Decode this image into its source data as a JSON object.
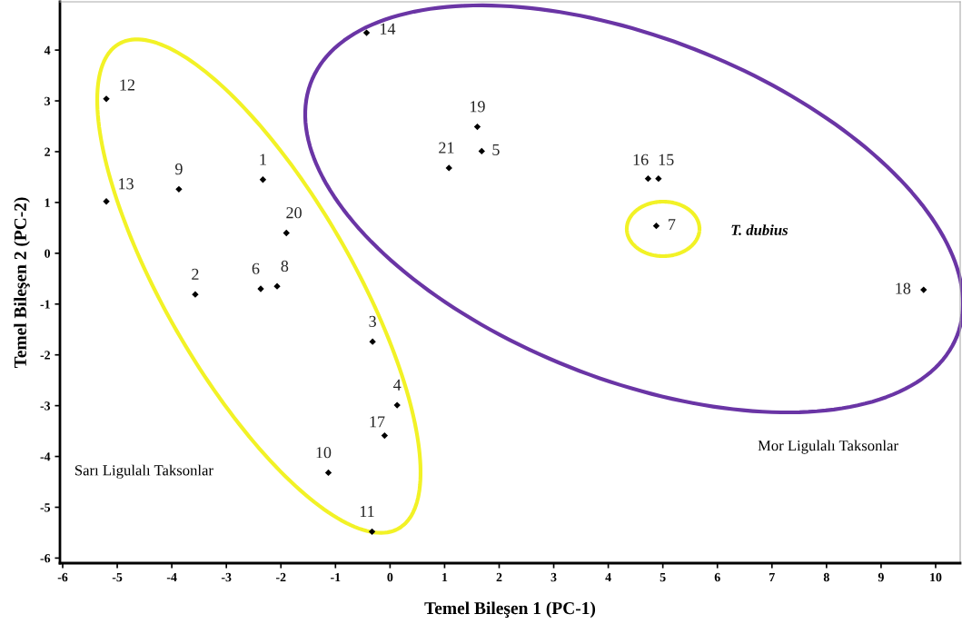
{
  "chart_data": {
    "type": "scatter",
    "xlabel": "Temel Bileşen 1 (PC-1)",
    "ylabel": "Temel Bileşen 2 (PC-2)",
    "x": [
      -2.33,
      -3.57,
      -0.32,
      0.13,
      1.68,
      -2.37,
      4.88,
      -2.07,
      -3.87,
      -1.13,
      -0.33,
      -5.2,
      -5.2,
      -0.43,
      4.92,
      4.73,
      -0.1,
      9.78,
      1.6,
      -1.9,
      1.08
    ],
    "values": [
      1.45,
      -0.81,
      -1.74,
      -2.99,
      2.01,
      -0.7,
      0.54,
      -0.65,
      1.26,
      -4.32,
      -5.48,
      3.04,
      1.02,
      4.34,
      1.47,
      1.47,
      -3.59,
      -0.72,
      2.49,
      0.4,
      1.68
    ],
    "color": "#000000",
    "marker": "diamond",
    "xlim": [
      -6.05,
      10.45
    ],
    "ylim": [
      -6.1,
      4.95
    ],
    "xticks": [
      -6,
      -5,
      -4,
      -3,
      -2,
      -1,
      0,
      1,
      2,
      3,
      4,
      5,
      6,
      7,
      8,
      9,
      10
    ],
    "yticks": [
      -6,
      -5,
      -4,
      -3,
      -2,
      -1,
      0,
      1,
      2,
      3,
      4
    ],
    "annotations": [
      "Sarı Ligulalı Taksonlar",
      "T. dubius",
      "Mor Ligulalı Taksonlar",
      {
        "text": "1",
        "x": -2.33,
        "y": 1.45
      },
      {
        "text": "2",
        "x": -3.57,
        "y": -0.81
      },
      {
        "text": "3",
        "x": -0.32,
        "y": -1.74
      },
      {
        "text": "4",
        "x": 0.13,
        "y": -2.99
      },
      {
        "text": "5",
        "x": 1.68,
        "y": 2.01
      },
      {
        "text": "6",
        "x": -2.37,
        "y": -0.7
      },
      {
        "text": "7",
        "x": 4.88,
        "y": 0.54
      },
      {
        "text": "8",
        "x": -2.07,
        "y": -0.65
      },
      {
        "text": "9",
        "x": -3.87,
        "y": 1.26
      },
      {
        "text": "10",
        "x": -1.13,
        "y": -4.32
      },
      {
        "text": "11",
        "x": -0.33,
        "y": -5.48
      },
      {
        "text": "12",
        "x": -5.2,
        "y": 3.04
      },
      {
        "text": "13",
        "x": -5.2,
        "y": 1.02
      },
      {
        "text": "14",
        "x": -0.43,
        "y": 4.34
      },
      {
        "text": "15",
        "x": 4.92,
        "y": 1.47
      },
      {
        "text": "16",
        "x": 4.73,
        "y": 1.47
      },
      {
        "text": "17",
        "x": -0.1,
        "y": -3.59
      },
      {
        "text": "18",
        "x": 9.78,
        "y": -0.72
      },
      {
        "text": "19",
        "x": 1.6,
        "y": 2.49
      },
      {
        "text": "20",
        "x": -1.9,
        "y": 0.4
      },
      {
        "text": "21",
        "x": 1.08,
        "y": 1.68
      }
    ]
  }
}
